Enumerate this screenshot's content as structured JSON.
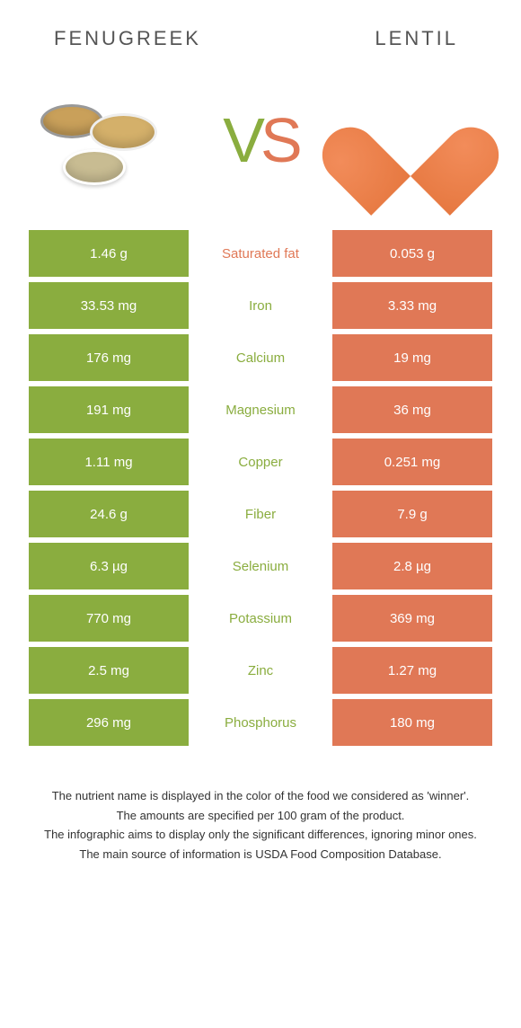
{
  "header": {
    "left_title": "Fenugreek",
    "right_title": "Lentil"
  },
  "vs": {
    "v": "V",
    "s": "S"
  },
  "colors": {
    "left": "#8aad3f",
    "right": "#e07856"
  },
  "rows": [
    {
      "left": "1.46 g",
      "label": "Saturated fat",
      "right": "0.053 g",
      "winner": "right"
    },
    {
      "left": "33.53 mg",
      "label": "Iron",
      "right": "3.33 mg",
      "winner": "left"
    },
    {
      "left": "176 mg",
      "label": "Calcium",
      "right": "19 mg",
      "winner": "left"
    },
    {
      "left": "191 mg",
      "label": "Magnesium",
      "right": "36 mg",
      "winner": "left"
    },
    {
      "left": "1.11 mg",
      "label": "Copper",
      "right": "0.251 mg",
      "winner": "left"
    },
    {
      "left": "24.6 g",
      "label": "Fiber",
      "right": "7.9 g",
      "winner": "left"
    },
    {
      "left": "6.3 µg",
      "label": "Selenium",
      "right": "2.8 µg",
      "winner": "left"
    },
    {
      "left": "770 mg",
      "label": "Potassium",
      "right": "369 mg",
      "winner": "left"
    },
    {
      "left": "2.5 mg",
      "label": "Zinc",
      "right": "1.27 mg",
      "winner": "left"
    },
    {
      "left": "296 mg",
      "label": "Phosphorus",
      "right": "180 mg",
      "winner": "left"
    }
  ],
  "footnotes": [
    "The nutrient name is displayed in the color of the food we considered as 'winner'.",
    "The amounts are specified per 100 gram of the product.",
    "The infographic aims to display only the significant differences, ignoring minor ones.",
    "The main source of information is USDA Food Composition Database."
  ]
}
